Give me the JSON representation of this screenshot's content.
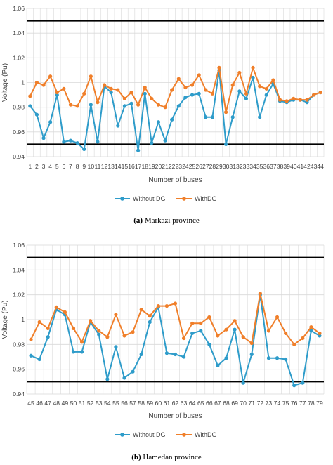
{
  "colors": {
    "without": "#2E9CCA",
    "with": "#F07F2A",
    "grid": "#D9D9D9",
    "limit": "#000000"
  },
  "legend": {
    "without_label": "Without DG",
    "with_label": "WithDG"
  },
  "captions": [
    {
      "tag": "(a)",
      "text": " Markazi province"
    },
    {
      "tag": "(b)",
      "text": " Hamedan province"
    }
  ],
  "chart_data": [
    {
      "type": "line",
      "title": "",
      "xlabel": "Number of buses",
      "ylabel": "Voltage (Pu)",
      "ylim": [
        0.94,
        1.06
      ],
      "yticks": [
        "0.94",
        "0.96",
        "0.98",
        "1",
        "1.02",
        "1.04",
        "1.06"
      ],
      "limits": [
        0.95,
        1.05
      ],
      "grid": true,
      "legend_position": "bottom",
      "x": [
        1,
        2,
        3,
        4,
        5,
        6,
        7,
        8,
        9,
        10,
        11,
        12,
        13,
        14,
        15,
        16,
        17,
        18,
        19,
        20,
        21,
        22,
        23,
        24,
        25,
        26,
        27,
        28,
        29,
        30,
        31,
        32,
        33,
        34,
        35,
        36,
        37,
        38,
        39,
        40,
        41,
        42,
        43,
        44
      ],
      "series": [
        {
          "name": "Without DG",
          "values": [
            0.981,
            0.974,
            0.955,
            0.968,
            0.99,
            0.952,
            0.953,
            0.951,
            0.946,
            0.982,
            0.952,
            0.997,
            0.992,
            0.965,
            0.981,
            0.983,
            0.945,
            0.991,
            0.951,
            0.968,
            0.953,
            0.97,
            0.981,
            0.988,
            0.99,
            0.991,
            0.972,
            0.972,
            1.01,
            0.95,
            0.972,
            0.993,
            0.987,
            1.004,
            0.972,
            0.99,
            0.999,
            0.985,
            0.984,
            0.986,
            0.986,
            0.984,
            0.99,
            0.992
          ]
        },
        {
          "name": "WithDG",
          "values": [
            0.989,
            1.0,
            0.998,
            1.005,
            0.992,
            0.995,
            0.982,
            0.981,
            0.991,
            1.005,
            0.984,
            0.998,
            0.995,
            0.994,
            0.987,
            0.992,
            0.982,
            0.996,
            0.987,
            0.982,
            0.98,
            0.994,
            1.003,
            0.996,
            0.998,
            1.006,
            0.994,
            0.991,
            1.012,
            0.976,
            0.998,
            1.008,
            0.991,
            1.012,
            0.997,
            0.995,
            1.002,
            0.986,
            0.985,
            0.987,
            0.986,
            0.986,
            0.99,
            0.992
          ]
        }
      ]
    },
    {
      "type": "line",
      "title": "",
      "xlabel": "Number of buses",
      "ylabel": "Voltage (Pu)",
      "ylim": [
        0.94,
        1.06
      ],
      "yticks": [
        "0.94",
        "0.96",
        "0.98",
        "1",
        "1.02",
        "1.04",
        "1.06"
      ],
      "limits": [
        0.95,
        1.05
      ],
      "grid": true,
      "legend_position": "bottom",
      "x": [
        45,
        46,
        47,
        48,
        49,
        50,
        51,
        52,
        53,
        54,
        55,
        56,
        57,
        58,
        59,
        60,
        61,
        62,
        63,
        64,
        65,
        66,
        67,
        68,
        69,
        70,
        71,
        72,
        73,
        74,
        75,
        76,
        77,
        78,
        79
      ],
      "series": [
        {
          "name": "Without DG",
          "values": [
            0.971,
            0.968,
            0.986,
            1.008,
            1.004,
            0.974,
            0.974,
            0.998,
            0.988,
            0.952,
            0.978,
            0.953,
            0.958,
            0.972,
            0.998,
            1.01,
            0.973,
            0.972,
            0.97,
            0.989,
            0.991,
            0.98,
            0.963,
            0.969,
            0.992,
            0.949,
            0.972,
            1.02,
            0.969,
            0.969,
            0.968,
            0.947,
            0.949,
            0.991,
            0.987
          ]
        },
        {
          "name": "WithDG",
          "values": [
            0.984,
            0.998,
            0.993,
            1.01,
            1.006,
            0.993,
            0.982,
            0.999,
            0.991,
            0.986,
            1.004,
            0.987,
            0.99,
            1.008,
            1.003,
            1.011,
            1.011,
            1.013,
            0.985,
            0.997,
            0.997,
            1.002,
            0.987,
            0.992,
            0.999,
            0.986,
            0.981,
            1.021,
            0.991,
            1.002,
            0.989,
            0.98,
            0.985,
            0.994,
            0.989
          ]
        }
      ]
    }
  ]
}
